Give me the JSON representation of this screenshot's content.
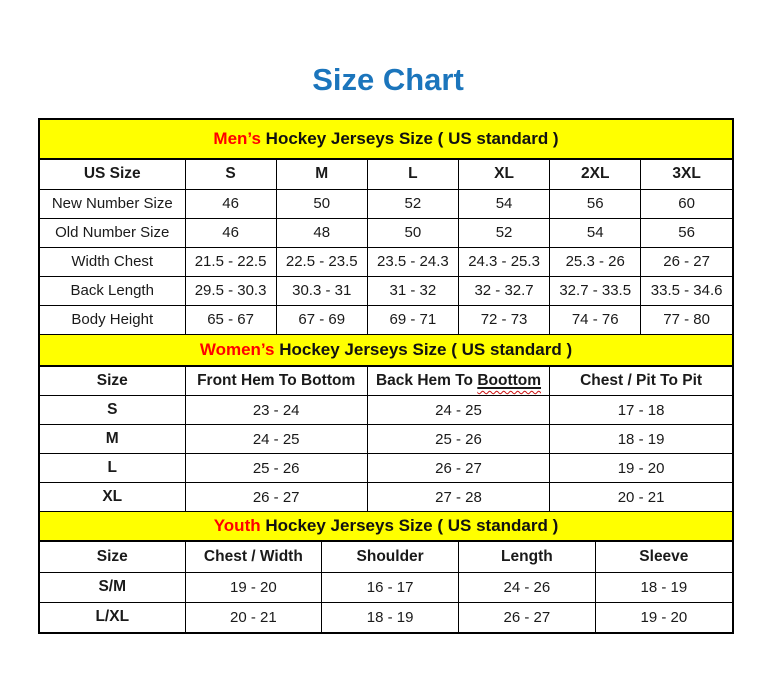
{
  "title": "Size Chart",
  "colors": {
    "title_blue": "#1b75bc",
    "highlight_red": "#ff0000",
    "band_yellow": "#ffff00",
    "squiggle_red": "#cc1111",
    "grid_black": "#000000"
  },
  "chart_data": [
    {
      "type": "table",
      "id": "mens",
      "band": {
        "highlight": "Men’s",
        "rest": " Hockey Jerseys Size ( US standard )"
      },
      "columns": [
        "US Size",
        "S",
        "M",
        "L",
        "XL",
        "2XL",
        "3XL"
      ],
      "rows": [
        {
          "label": "New Number Size",
          "values": [
            "46",
            "50",
            "52",
            "54",
            "56",
            "60"
          ]
        },
        {
          "label": "Old Number Size",
          "values": [
            "46",
            "48",
            "50",
            "52",
            "54",
            "56"
          ]
        },
        {
          "label": "Width Chest",
          "values": [
            "21.5 - 22.5",
            "22.5 - 23.5",
            "23.5 - 24.3",
            "24.3 - 25.3",
            "25.3 - 26",
            "26 - 27"
          ]
        },
        {
          "label": "Back Length",
          "values": [
            "29.5 - 30.3",
            "30.3 - 31",
            "31 - 32",
            "32 - 32.7",
            "32.7 - 33.5",
            "33.5 - 34.6"
          ]
        },
        {
          "label": "Body Height",
          "values": [
            "65 - 67",
            "67 - 69",
            "69 - 71",
            "72 - 73",
            "74 - 76",
            "77 - 80"
          ]
        }
      ]
    },
    {
      "type": "table",
      "id": "womens",
      "band": {
        "highlight": "Women’s",
        "rest": " Hockey Jerseys Size ( US standard )"
      },
      "columns": [
        "Size",
        "Front Hem To Bottom",
        "Back Hem To Boottom",
        "Chest / Pit To Pit"
      ],
      "misspelling": {
        "column_index": 2,
        "prefix": "Back Hem To ",
        "word": "Boottom"
      },
      "rows": [
        {
          "label": "S",
          "values": [
            "23 - 24",
            "24 - 25",
            "17 - 18"
          ]
        },
        {
          "label": "M",
          "values": [
            "24 - 25",
            "25 - 26",
            "18 - 19"
          ]
        },
        {
          "label": "L",
          "values": [
            "25 - 26",
            "26 - 27",
            "19 - 20"
          ]
        },
        {
          "label": "XL",
          "values": [
            "26 - 27",
            "27 - 28",
            "20 - 21"
          ]
        }
      ]
    },
    {
      "type": "table",
      "id": "youth",
      "band": {
        "highlight": "Youth",
        "rest": " Hockey Jerseys Size ( US standard )"
      },
      "columns": [
        "Size",
        "Chest / Width",
        "Shoulder",
        "Length",
        "Sleeve"
      ],
      "rows": [
        {
          "label": "S/M",
          "values": [
            "19 - 20",
            "16 - 17",
            "24 - 26",
            "18 - 19"
          ]
        },
        {
          "label": "L/XL",
          "values": [
            "20 - 21",
            "18 - 19",
            "26 - 27",
            "19 - 20"
          ]
        }
      ]
    }
  ]
}
